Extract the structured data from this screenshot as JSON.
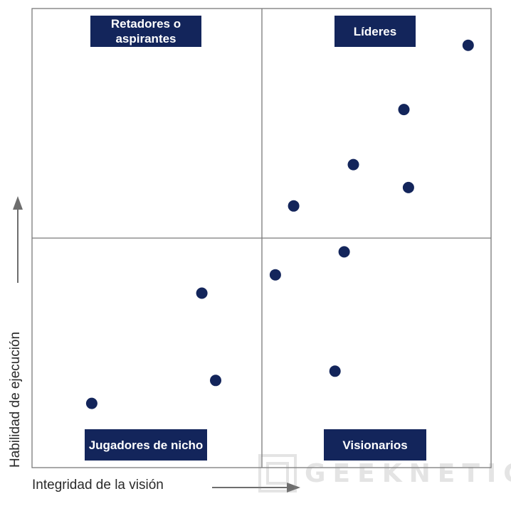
{
  "chart_data": {
    "type": "scatter",
    "title": "",
    "xlabel": "Integridad de la visión",
    "ylabel": "Habilidad de ejecución",
    "xlim": [
      0,
      100
    ],
    "ylim": [
      0,
      100
    ],
    "grid": false,
    "quadrants": {
      "top_left": "Retadores o aspirantes",
      "top_right": "Líderes",
      "bottom_left": "Jugadores de nicho",
      "bottom_right": "Visionarios"
    },
    "colors": {
      "point": "#13255b",
      "label_bg": "#13255b",
      "label_text": "#ffffff",
      "axis": "#6b6b6b",
      "arrow": "#7a7a7a"
    },
    "points": [
      {
        "x": 95,
        "y": 92
      },
      {
        "x": 81,
        "y": 78
      },
      {
        "x": 70,
        "y": 66
      },
      {
        "x": 82,
        "y": 61
      },
      {
        "x": 57,
        "y": 57
      },
      {
        "x": 68,
        "y": 47
      },
      {
        "x": 53,
        "y": 42
      },
      {
        "x": 37,
        "y": 38
      },
      {
        "x": 66,
        "y": 21
      },
      {
        "x": 40,
        "y": 19
      },
      {
        "x": 13,
        "y": 14
      }
    ]
  },
  "watermark": {
    "text": "GEEKNETIC"
  }
}
